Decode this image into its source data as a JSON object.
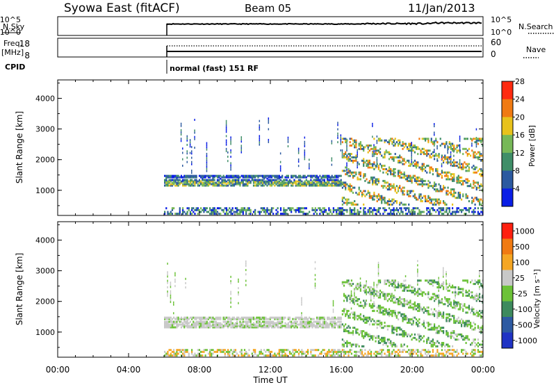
{
  "header": {
    "station": "Syowa East (fitACF)",
    "beam": "Beam 05",
    "date": "11/Jan/2013"
  },
  "panels": {
    "nsky": {
      "label": "N.Sky",
      "right_label": "N.Search",
      "left_ticks": [
        "10^5",
        "10^0"
      ],
      "right_ticks": [
        "10^5",
        "10^0"
      ]
    },
    "freq": {
      "label_line1": "Freq.",
      "label_line2": "[MHz]",
      "right_label": "Nave",
      "left_ticks": [
        "18",
        "8"
      ],
      "right_ticks": [
        "60",
        "0"
      ]
    },
    "cpid": {
      "label": "CPID",
      "mode": "normal (fast) 151 RF"
    }
  },
  "chart_data": [
    {
      "type": "heatmap",
      "title": "",
      "quantity": "Power",
      "ylabel": "Slant Range [km]",
      "ylim": [
        180,
        4600
      ],
      "yticks": [
        "1000",
        "2000",
        "3000",
        "4000"
      ],
      "xlabel": "",
      "xticks": [
        "00:00",
        "04:00",
        "08:00",
        "12:00",
        "16:00",
        "20:00",
        "00:00"
      ],
      "data_start": "06:00",
      "colorbar": {
        "label": "Power [dB]",
        "ticks": [
          "4",
          "8",
          "12",
          "16",
          "20",
          "24",
          "28"
        ],
        "colors": [
          "#0a1ee6",
          "#2c5aa0",
          "#3f8e68",
          "#77b858",
          "#e8c21c",
          "#f07a12",
          "#ff2a10"
        ]
      },
      "features": [
        {
          "range_km": [
            1150,
            1250
          ],
          "dominant": "yellow-green",
          "time": "06:00-15:00"
        },
        {
          "range_km": [
            1350,
            1450
          ],
          "dominant": "blue",
          "time": "06:00-16:00"
        },
        {
          "range_km": [
            200,
            400
          ],
          "dominant": "blue-green",
          "time": "06:00-24:00"
        },
        {
          "range_km": [
            600,
            2600
          ],
          "dominant": "orange-green",
          "time": "16:00-24:00"
        }
      ]
    },
    {
      "type": "heatmap",
      "title": "",
      "quantity": "Velocity",
      "ylabel": "Slant Range [km]",
      "ylim": [
        180,
        4600
      ],
      "yticks": [
        "1000",
        "2000",
        "3000",
        "4000"
      ],
      "xlabel": "Time UT",
      "xticks": [
        "00:00",
        "04:00",
        "08:00",
        "12:00",
        "16:00",
        "20:00",
        "00:00"
      ],
      "data_start": "06:00",
      "colorbar": {
        "label": "Velocity [m s⁻¹]",
        "ticks": [
          "1000",
          "500",
          "100",
          "25",
          "-25",
          "-100",
          "-500",
          "-1000"
        ],
        "colors": [
          "#1f33c4",
          "#2d5aa2",
          "#3d8a5e",
          "#6cc238",
          "#c8c8c8",
          "#f5a623",
          "#f07a12",
          "#ff2010"
        ]
      },
      "features": [
        {
          "range_km": [
            1150,
            1450
          ],
          "dominant": "gray (ground scatter)",
          "time": "06:00-16:00"
        },
        {
          "range_km": [
            600,
            2600
          ],
          "dominant": "green",
          "time": "16:00-24:00"
        }
      ]
    }
  ],
  "colors": {
    "axis": "#000000",
    "ground_scatter": "#c8c8c8"
  }
}
